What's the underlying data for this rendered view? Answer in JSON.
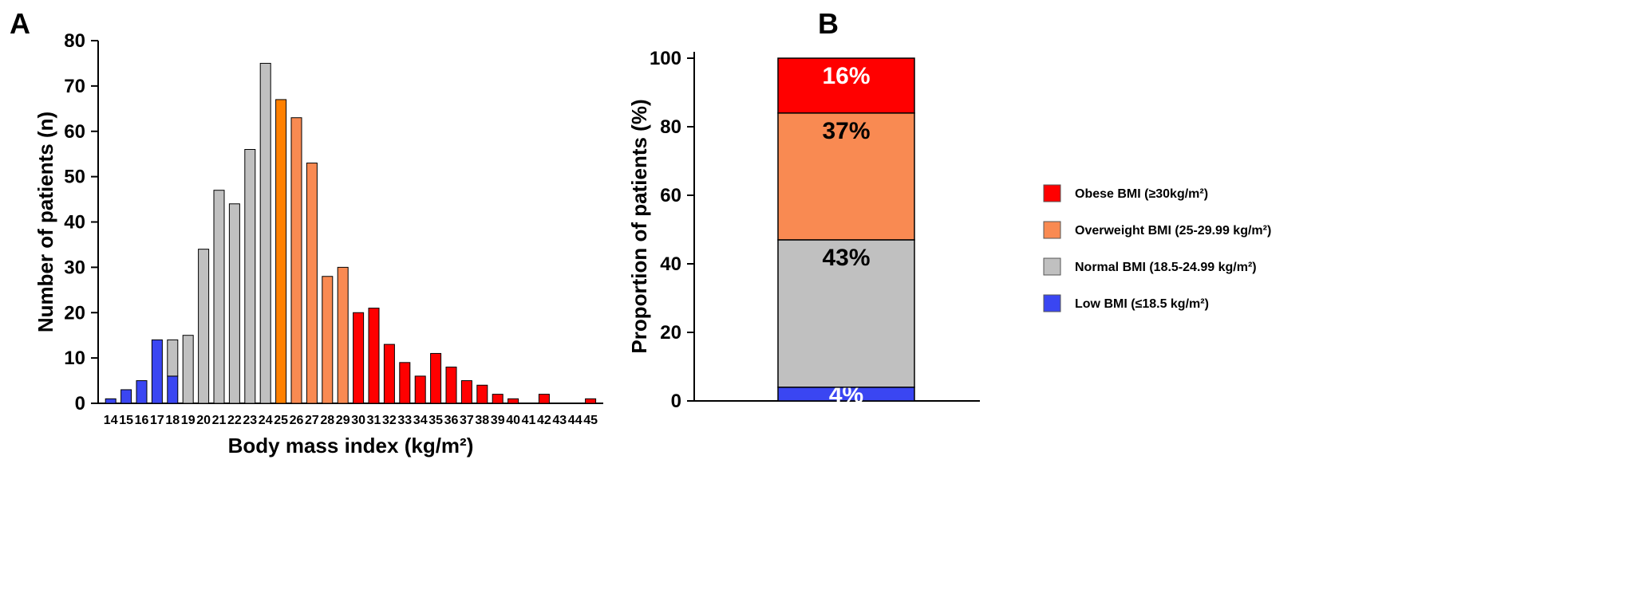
{
  "colors": {
    "low": "#3a46f2",
    "normal": "#c0c0c0",
    "overweight_bin25": "#ff8000",
    "overweight": "#f98a52",
    "obese": "#ff0000",
    "axis": "#000000"
  },
  "chart_data": [
    {
      "panel": "A",
      "type": "bar",
      "stacked": true,
      "xlabel": "Body mass index (kg/m²)",
      "ylabel": "Number of patients (n)",
      "ylim": [
        0,
        80
      ],
      "yticks": [
        0,
        10,
        20,
        30,
        40,
        50,
        60,
        70,
        80
      ],
      "categories": [
        "14",
        "15",
        "16",
        "17",
        "18",
        "19",
        "20",
        "21",
        "22",
        "23",
        "24",
        "25",
        "26",
        "27",
        "28",
        "29",
        "30",
        "31",
        "32",
        "33",
        "34",
        "35",
        "36",
        "37",
        "38",
        "39",
        "40",
        "41",
        "42",
        "43",
        "44",
        "45"
      ],
      "series": [
        {
          "key": "low",
          "values": [
            1,
            3,
            5,
            14,
            6,
            0,
            0,
            0,
            0,
            0,
            0,
            0,
            0,
            0,
            0,
            0,
            0,
            0,
            0,
            0,
            0,
            0,
            0,
            0,
            0,
            0,
            0,
            0,
            0,
            0,
            0,
            0
          ]
        },
        {
          "key": "normal",
          "values": [
            0,
            0,
            0,
            0,
            8,
            15,
            34,
            47,
            44,
            56,
            75,
            0,
            0,
            0,
            0,
            0,
            0,
            0,
            0,
            0,
            0,
            0,
            0,
            0,
            0,
            0,
            0,
            0,
            0,
            0,
            0,
            0
          ]
        },
        {
          "key": "overweight",
          "values": [
            0,
            0,
            0,
            0,
            0,
            0,
            0,
            0,
            0,
            0,
            0,
            67,
            63,
            53,
            28,
            30,
            0,
            0,
            0,
            0,
            0,
            0,
            0,
            0,
            0,
            0,
            0,
            0,
            0,
            0,
            0,
            0
          ]
        },
        {
          "key": "obese",
          "values": [
            0,
            0,
            0,
            0,
            0,
            0,
            0,
            0,
            0,
            0,
            0,
            0,
            0,
            0,
            0,
            0,
            20,
            21,
            13,
            9,
            6,
            11,
            8,
            5,
            4,
            2,
            1,
            0,
            2,
            0,
            0,
            1
          ]
        }
      ]
    },
    {
      "panel": "B",
      "type": "bar",
      "stacked": true,
      "ylabel": "Proportion of patients (%)",
      "ylim": [
        0,
        100
      ],
      "yticks": [
        0,
        20,
        40,
        60,
        80,
        100
      ],
      "segments": [
        {
          "key": "low",
          "value": 4,
          "label": "4%",
          "legend": "Low BMI (≤18.5 kg/m²)"
        },
        {
          "key": "normal",
          "value": 43,
          "label": "43%",
          "legend": "Normal BMI (18.5-24.99 kg/m²)"
        },
        {
          "key": "overweight",
          "value": 37,
          "label": "37%",
          "legend": "Overweight BMI (25-29.99 kg/m²)"
        },
        {
          "key": "obese",
          "value": 16,
          "label": "16%",
          "legend": "Obese BMI (≥30kg/m²)"
        }
      ],
      "legend_order": [
        "obese",
        "overweight",
        "normal",
        "low"
      ],
      "legend_placement": "right"
    }
  ]
}
